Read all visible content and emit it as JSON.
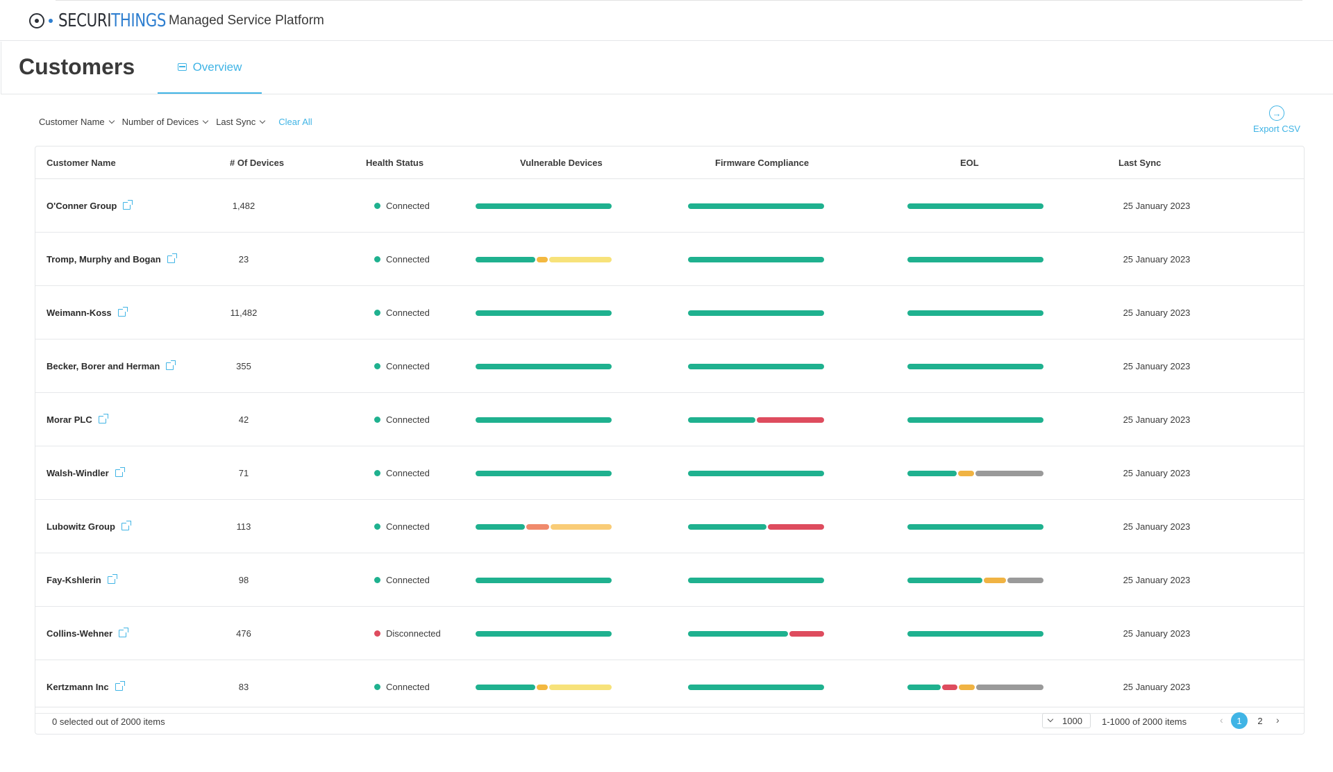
{
  "brand": {
    "logo_dark": "SECURI",
    "logo_blue": "THINGS",
    "platform_title": "Managed Service Platform"
  },
  "page": {
    "title": "Customers",
    "tab": "Overview"
  },
  "filters": {
    "customer_name": "Customer Name",
    "number_of_devices": "Number of Devices",
    "last_sync": "Last Sync",
    "clear_all": "Clear All"
  },
  "export": {
    "label": "Export CSV"
  },
  "table": {
    "columns": [
      "Customer Name",
      "# Of Devices",
      "Health Status",
      "Vulnerable Devices",
      "Firmware Compliance",
      "EOL",
      "Last Sync"
    ],
    "rows": [
      {
        "name": "O'Conner Group",
        "devices": "1,482",
        "health": "Connected",
        "last_sync": "25 January 2023",
        "vulnerable": [
          100
        ],
        "firmware": [
          100
        ],
        "eol": [
          100
        ]
      },
      {
        "name": "Tromp, Murphy and Bogan",
        "devices": "23",
        "health": "Connected",
        "last_sync": "25 January 2023",
        "vulnerable": [
          45,
          8,
          47
        ],
        "firmware": [
          100
        ],
        "eol": [
          100
        ]
      },
      {
        "name": "Weimann-Koss",
        "devices": "11,482",
        "health": "Connected",
        "last_sync": "25 January 2023",
        "vulnerable": [
          100
        ],
        "firmware": [
          100
        ],
        "eol": [
          100
        ]
      },
      {
        "name": "Becker, Borer and Herman",
        "devices": "355",
        "health": "Connected",
        "last_sync": "25 January 2023",
        "vulnerable": [
          100
        ],
        "firmware": [
          100
        ],
        "eol": [
          100
        ]
      },
      {
        "name": "Morar PLC",
        "devices": "42",
        "health": "Connected",
        "last_sync": "25 January 2023",
        "vulnerable": [
          100
        ],
        "firmware": [
          50,
          50
        ],
        "eol": [
          100
        ]
      },
      {
        "name": "Walsh-Windler",
        "devices": "71",
        "health": "Connected",
        "last_sync": "25 January 2023",
        "vulnerable": [
          100
        ],
        "firmware": [
          100
        ],
        "eol": [
          37,
          12,
          51
        ]
      },
      {
        "name": "Lubowitz Group",
        "devices": "113",
        "health": "Connected",
        "last_sync": "25 January 2023",
        "vulnerable": [
          37,
          17,
          46
        ],
        "firmware": [
          58,
          42
        ],
        "eol": [
          100
        ]
      },
      {
        "name": "Fay-Kshlerin",
        "devices": "98",
        "health": "Connected",
        "last_sync": "25 January 2023",
        "vulnerable": [
          100
        ],
        "firmware": [
          100
        ],
        "eol": [
          56,
          17,
          27
        ]
      },
      {
        "name": "Collins-Wehner",
        "devices": "476",
        "health": "Disconnected",
        "last_sync": "25 January 2023",
        "vulnerable": [
          100
        ],
        "firmware": [
          74,
          26
        ],
        "eol": [
          100
        ]
      },
      {
        "name": "Kertzmann Inc",
        "devices": "83",
        "health": "Connected",
        "last_sync": "25 January 2023",
        "vulnerable": [
          45,
          8,
          47
        ],
        "firmware": [
          100
        ],
        "eol": [
          25,
          12,
          12,
          51
        ]
      }
    ]
  },
  "bar_colors": {
    "vulnerable": [
      "#1fb18f",
      "#f3b840",
      "#f7e27a"
    ],
    "vulnerable_alt": [
      "#1fb18f",
      "#f08a6c",
      "#f9cc77"
    ],
    "firmware": [
      "#1fb18f",
      "#de4c5e"
    ],
    "eol": [
      "#1fb18f",
      "#f0b343",
      "#9a9a9a"
    ],
    "eol_alt": [
      "#1fb18f",
      "#de4c5e",
      "#f0b343",
      "#9a9a9a"
    ]
  },
  "status_colors": {
    "Connected": "#1fb18f",
    "Disconnected": "#de4c5e"
  },
  "footer": {
    "selected_info": "0 selected out of 2000 items",
    "page_size": "1000",
    "range_info": "1-1000 of 2000 items",
    "pages": [
      "1",
      "2"
    ],
    "active_page": "1"
  }
}
